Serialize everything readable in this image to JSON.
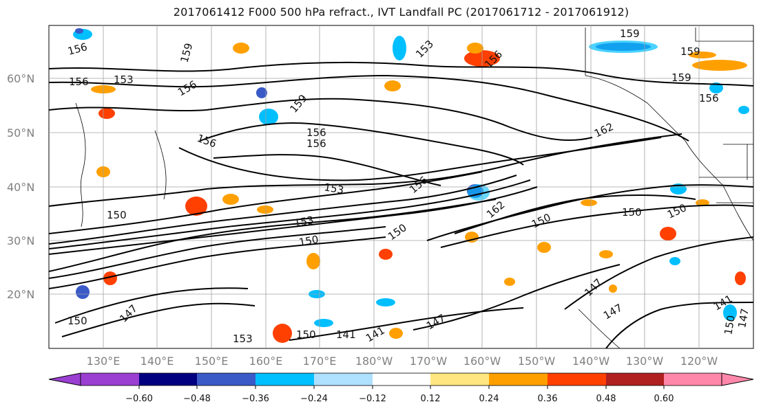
{
  "title": "2017061412 F000 500 hPa refract., IVT Landfall PC (2017061712 - 2017061912)",
  "axes": {
    "lon_labels": [
      "130°E",
      "140°E",
      "150°E",
      "160°E",
      "170°E",
      "180°W",
      "170°W",
      "160°W",
      "150°W",
      "140°W",
      "130°W",
      "120°W"
    ],
    "lat_labels": [
      "20°N",
      "30°N",
      "40°N",
      "50°N",
      "60°N"
    ]
  },
  "colorbar": {
    "tick_labels": [
      "−0.60",
      "−0.48",
      "−0.36",
      "−0.24",
      "−0.12",
      "0.12",
      "0.24",
      "0.36",
      "0.48",
      "0.60"
    ],
    "colors": [
      "#9a3fd1",
      "#000080",
      "#3a5ac8",
      "#00bfff",
      "#aee0ff",
      "#ffffff",
      "#ffe680",
      "#ffa000",
      "#ff4000",
      "#b02020",
      "#ff88aa"
    ]
  },
  "contour_labels": [
    "156",
    "156",
    "153",
    "156",
    "159",
    "156",
    "156",
    "156",
    "153",
    "156",
    "159",
    "159",
    "156",
    "162",
    "159",
    "159",
    "153",
    "156",
    "150",
    "153",
    "150",
    "162",
    "150",
    "150",
    "150",
    "150",
    "147",
    "147",
    "147",
    "141",
    "147",
    "141",
    "150",
    "150",
    "150",
    "141",
    "147",
    "153"
  ]
}
